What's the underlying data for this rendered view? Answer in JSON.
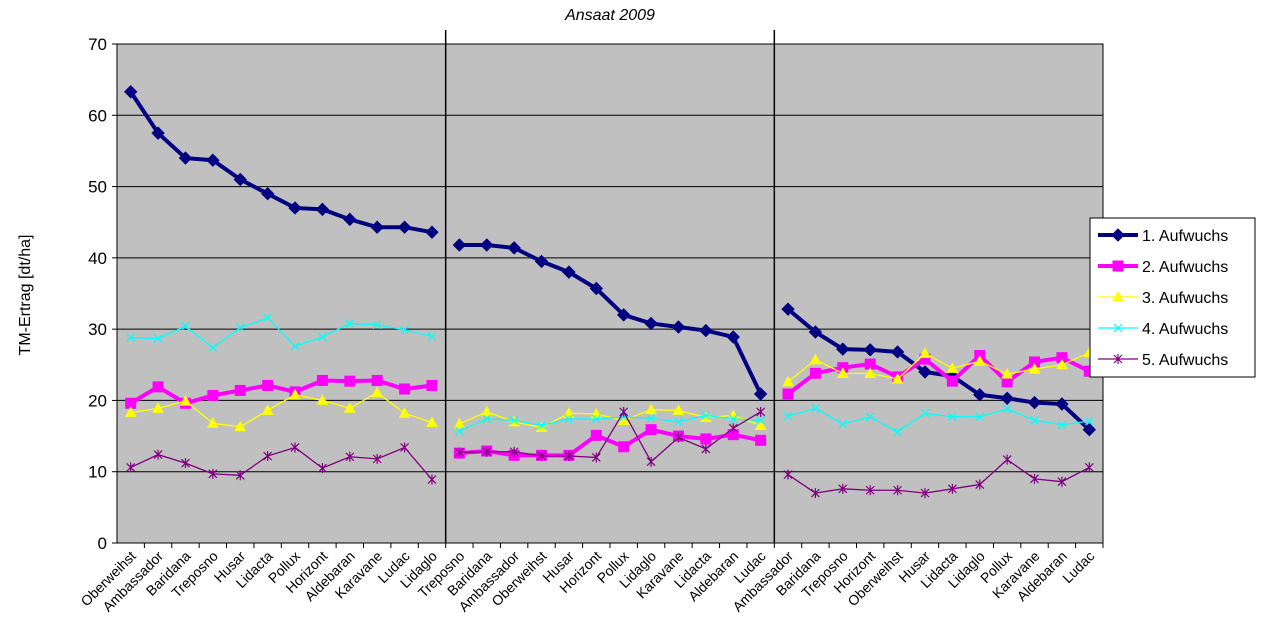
{
  "chart_data": {
    "type": "line",
    "title": "Ansaat 2009",
    "y_label": "TM-Ertrag [dt/ha]",
    "categories": [
      "Oberweihst",
      "Ambassador",
      "Baridana",
      "Treposno",
      "Husar",
      "Lidacta",
      "Pollux",
      "Horizont",
      "Aldebaran",
      "Karavane",
      "Ludac",
      "Lidaglo",
      "Treposno",
      "Baridana",
      "Ambassador",
      "Oberweihst",
      "Husar",
      "Horizont",
      "Pollux",
      "Lidaglo",
      "Karavane",
      "Lidacta",
      "Aldebaran",
      "Ludac",
      "Ambassador",
      "Baridana",
      "Treposno",
      "Horizont",
      "Oberweihst",
      "Husar",
      "Lidacta",
      "Lidaglo",
      "Pollux",
      "Karavane",
      "Aldebaran",
      "Ludac"
    ],
    "series": [
      {
        "name": "1. Aufwuchs",
        "color": "#000080",
        "marker": "diamond",
        "values": [
          63.3,
          57.5,
          54,
          53.7,
          51,
          49,
          47,
          46.8,
          45.4,
          44.3,
          44.3,
          43.6,
          41.8,
          41.8,
          41.4,
          39.5,
          38,
          35.7,
          32,
          30.8,
          30.3,
          29.8,
          28.9,
          20.9,
          32.8,
          29.6,
          27.2,
          27.1,
          26.8,
          24,
          23.4,
          20.8,
          20.3,
          19.7,
          19.5,
          15.9
        ]
      },
      {
        "name": "2. Aufwuchs",
        "color": "#ff00ff",
        "marker": "square",
        "values": [
          19.6,
          21.9,
          19.6,
          20.7,
          21.4,
          22.1,
          21.2,
          22.8,
          22.7,
          22.8,
          21.6,
          22.1,
          12.6,
          12.9,
          12.3,
          12.3,
          12.3,
          15.1,
          13.5,
          15.9,
          15,
          14.6,
          15.2,
          14.4,
          20.9,
          23.8,
          24.6,
          25.1,
          23.3,
          25.8,
          22.7,
          26.3,
          22.6,
          25.4,
          26,
          24.1
        ]
      },
      {
        "name": "3. Aufwuchs",
        "color": "#ffff00",
        "marker": "triangle",
        "values": [
          18.3,
          18.9,
          19.9,
          16.8,
          16.3,
          18.6,
          20.8,
          20,
          18.9,
          21.1,
          18.2,
          16.9,
          16.7,
          18.4,
          17,
          16.2,
          18.2,
          18.1,
          17.2,
          18.7,
          18.6,
          17.6,
          17.9,
          16.5,
          22.6,
          25.7,
          23.8,
          23.8,
          23,
          26.6,
          24.5,
          25.5,
          23.7,
          24.4,
          25,
          26.7
        ]
      },
      {
        "name": "4. Aufwuchs",
        "color": "#00ffff",
        "marker": "x",
        "values": [
          28.8,
          28.7,
          30.4,
          27.4,
          30.2,
          31.6,
          27.6,
          28.9,
          30.8,
          30.6,
          29.9,
          29,
          15.7,
          17.4,
          17.2,
          16.5,
          17.4,
          17.4,
          17.7,
          17.5,
          17,
          17.9,
          17.4,
          17.2,
          17.8,
          18.9,
          16.7,
          17.7,
          15.6,
          18.2,
          17.7,
          17.7,
          18.8,
          17.2,
          16.6,
          17.1
        ]
      },
      {
        "name": "5. Aufwuchs",
        "color": "#800080",
        "marker": "star",
        "values": [
          10.6,
          12.4,
          11.2,
          9.7,
          9.5,
          12.2,
          13.4,
          10.5,
          12.1,
          11.8,
          13.4,
          8.9,
          12.7,
          12.8,
          12.8,
          12.2,
          12.2,
          12,
          18.4,
          11.4,
          14.8,
          13.2,
          16.1,
          18.4,
          9.6,
          7,
          7.6,
          7.4,
          7.4,
          7,
          7.6,
          8.2,
          11.7,
          9,
          8.6,
          10.6
        ]
      }
    ],
    "ylim": [
      0,
      70
    ],
    "yticks": [
      0,
      10,
      20,
      30,
      40,
      50,
      60,
      70
    ],
    "grid": true,
    "legend": "right"
  }
}
